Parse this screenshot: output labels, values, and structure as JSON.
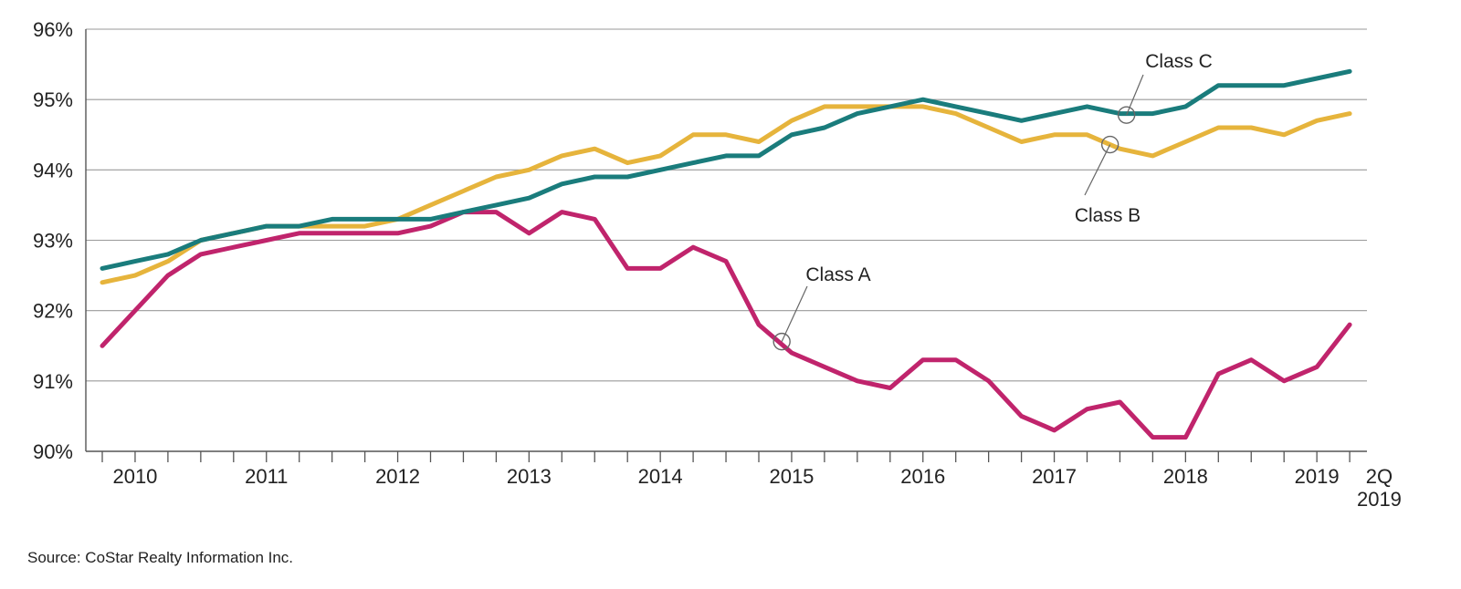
{
  "chart_data": {
    "type": "line",
    "xlabel": "",
    "ylabel": "",
    "ylim": [
      90,
      96
    ],
    "yticks": [
      "90%",
      "91%",
      "92%",
      "93%",
      "94%",
      "95%",
      "96%"
    ],
    "grid": "horizontal",
    "x_labels": [
      {
        "label": "2010",
        "q": 1
      },
      {
        "label": "2011",
        "q": 5
      },
      {
        "label": "2012",
        "q": 9
      },
      {
        "label": "2013",
        "q": 13
      },
      {
        "label": "2014",
        "q": 17
      },
      {
        "label": "2015",
        "q": 21
      },
      {
        "label": "2016",
        "q": 25
      },
      {
        "label": "2017",
        "q": 29
      },
      {
        "label": "2018",
        "q": 33
      },
      {
        "label": "2019",
        "q": 37
      },
      {
        "label": "2Q",
        "q": 38.9
      },
      {
        "label": "2019",
        "q": 38.9,
        "line": 2
      }
    ],
    "series": [
      {
        "name": "Class A",
        "color": "#c0246c",
        "values": [
          91.5,
          92.0,
          92.5,
          92.8,
          92.9,
          93.0,
          93.1,
          93.1,
          93.1,
          93.1,
          93.2,
          93.4,
          93.4,
          93.1,
          93.4,
          93.3,
          92.6,
          92.6,
          92.9,
          92.7,
          91.8,
          91.4,
          91.2,
          91.0,
          90.9,
          91.3,
          91.3,
          91.0,
          90.5,
          90.3,
          90.6,
          90.7,
          90.2,
          90.2,
          91.1,
          91.3,
          91.0,
          91.2,
          91.8
        ]
      },
      {
        "name": "Class B",
        "color": "#e6b43c",
        "values": [
          92.4,
          92.5,
          92.7,
          93.0,
          93.1,
          93.2,
          93.2,
          93.2,
          93.2,
          93.3,
          93.5,
          93.7,
          93.9,
          94.0,
          94.2,
          94.3,
          94.1,
          94.2,
          94.5,
          94.5,
          94.4,
          94.7,
          94.9,
          94.9,
          94.9,
          94.9,
          94.8,
          94.6,
          94.4,
          94.5,
          94.5,
          94.3,
          94.2,
          94.4,
          94.6,
          94.6,
          94.5,
          94.7,
          94.8
        ]
      },
      {
        "name": "Class C",
        "color": "#1a7c7c",
        "values": [
          92.6,
          92.7,
          92.8,
          93.0,
          93.1,
          93.2,
          93.2,
          93.3,
          93.3,
          93.3,
          93.3,
          93.4,
          93.5,
          93.6,
          93.8,
          93.9,
          93.9,
          94.0,
          94.1,
          94.2,
          94.2,
          94.5,
          94.6,
          94.8,
          94.9,
          95.0,
          94.9,
          94.8,
          94.7,
          94.8,
          94.9,
          94.8,
          94.8,
          94.9,
          95.2,
          95.2,
          95.2,
          95.3,
          95.4
        ]
      }
    ],
    "annotations": [
      {
        "series": "Class A",
        "text": "Class A",
        "q": 20.7,
        "value": 91.56
      },
      {
        "series": "Class B",
        "text": "Class B",
        "q": 30.7,
        "value": 94.36
      },
      {
        "series": "Class C",
        "text": "Class C",
        "q": 31.2,
        "value": 94.78
      }
    ],
    "source": "Source: CoStar Realty Information Inc."
  }
}
